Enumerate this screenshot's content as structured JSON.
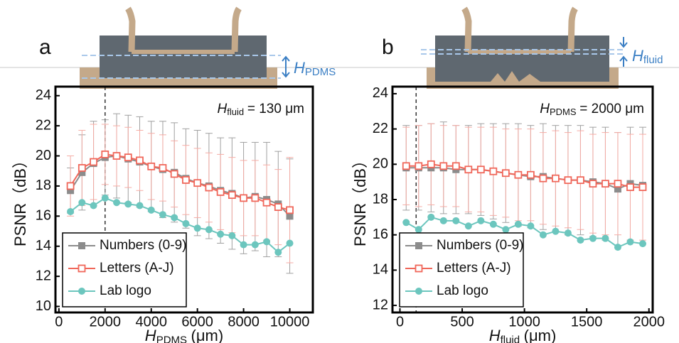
{
  "figure": {
    "panels": [
      "a",
      "b"
    ],
    "schematic_labels": [
      {
        "symbol": "H",
        "subscript": "PDMS"
      },
      {
        "symbol": "H",
        "subscript": "fluid"
      }
    ]
  },
  "chart_data": [
    {
      "type": "line",
      "panel": "a",
      "x_label": {
        "symbol": "H",
        "subscript": "PDMS",
        "text": "(μm)"
      },
      "y_label": "PSNR（dB）",
      "annotation": {
        "symbol": "H",
        "subscript": "fluid",
        "text": "= 130 μm"
      },
      "marker_line_x": 2000,
      "xlim": [
        -150,
        11000
      ],
      "xticks": [
        0,
        2000,
        4000,
        6000,
        8000,
        10000
      ],
      "ylim": [
        9.6,
        24.6
      ],
      "yticks": [
        10,
        12,
        14,
        16,
        18,
        20,
        22,
        24
      ],
      "legend": "lower left",
      "x": [
        500,
        1000,
        1500,
        2000,
        2500,
        3000,
        3500,
        4000,
        4500,
        5000,
        5500,
        6000,
        6500,
        7000,
        7500,
        8000,
        8500,
        9000,
        9500,
        10000
      ],
      "series": [
        {
          "name": "Numbers (0-9)",
          "color": "#8c8c8c",
          "error_color": "#a0a0a0",
          "marker": "square",
          "values": [
            17.7,
            18.9,
            19.5,
            19.9,
            20.0,
            19.8,
            19.6,
            19.3,
            19.1,
            18.9,
            18.5,
            18.2,
            18.0,
            17.7,
            17.5,
            17.2,
            17.3,
            17.1,
            16.8,
            16.0
          ],
          "errors": [
            1.5,
            2.5,
            2.8,
            2.5,
            2.8,
            2.9,
            3.0,
            3.0,
            3.2,
            3.3,
            3.3,
            3.5,
            3.5,
            3.5,
            3.7,
            3.7,
            3.6,
            3.8,
            3.5,
            3.8
          ]
        },
        {
          "name": "Letters (A-J)",
          "color": "#f0675a",
          "error_color": "#f5aca5",
          "marker": "square-open",
          "values": [
            18.0,
            19.2,
            19.6,
            20.1,
            20.0,
            19.9,
            19.7,
            19.3,
            19.2,
            18.8,
            18.4,
            18.2,
            17.9,
            17.6,
            17.4,
            17.2,
            17.2,
            16.9,
            16.6,
            16.4
          ],
          "errors": [
            2.0,
            2.5,
            2.5,
            2.0,
            2.0,
            2.0,
            2.0,
            2.2,
            2.2,
            2.2,
            2.3,
            2.3,
            2.3,
            2.5,
            2.5,
            2.5,
            2.5,
            2.5,
            2.5,
            3.5
          ]
        },
        {
          "name": "Lab logo",
          "color": "#6cc6be",
          "marker": "circle",
          "values": [
            16.3,
            16.9,
            16.7,
            17.2,
            16.9,
            16.8,
            16.7,
            16.4,
            16.1,
            15.9,
            15.5,
            15.2,
            15.1,
            14.8,
            14.7,
            14.1,
            14.1,
            14.3,
            13.6,
            14.2
          ]
        }
      ]
    },
    {
      "type": "line",
      "panel": "b",
      "x_label": {
        "symbol": "H",
        "subscript": "fluid",
        "text": "(μm)"
      },
      "y_label": "PSNR（dB）",
      "annotation": {
        "symbol": "H",
        "subscript": "PDMS",
        "text": "= 2000 μm"
      },
      "marker_line_x": 130,
      "xlim": [
        -60,
        2030
      ],
      "xticks": [
        0,
        500,
        1000,
        1500,
        2000
      ],
      "ylim": [
        11.6,
        24.4
      ],
      "yticks": [
        12,
        14,
        16,
        18,
        20,
        22,
        24
      ],
      "legend": "lower left",
      "x": [
        50,
        150,
        250,
        350,
        450,
        550,
        650,
        750,
        850,
        950,
        1050,
        1150,
        1250,
        1350,
        1450,
        1550,
        1650,
        1750,
        1850,
        1950
      ],
      "series": [
        {
          "name": "Numbers (0-9)",
          "color": "#8c8c8c",
          "error_color": "#a0a0a0",
          "marker": "square",
          "values": [
            19.8,
            19.8,
            19.8,
            19.8,
            19.7,
            19.7,
            19.7,
            19.6,
            19.5,
            19.4,
            19.3,
            19.3,
            19.2,
            19.1,
            19.1,
            19.0,
            18.9,
            18.6,
            18.9,
            18.8
          ],
          "errors": [
            2.4,
            2.4,
            2.5,
            2.6,
            2.5,
            2.5,
            2.6,
            2.7,
            2.8,
            2.9,
            2.9,
            3.0,
            3.0,
            3.1,
            3.1,
            3.1,
            3.2,
            3.2,
            3.2,
            3.3
          ]
        },
        {
          "name": "Letters (A-J)",
          "color": "#f0675a",
          "error_color": "#f5aca5",
          "marker": "square-open",
          "values": [
            19.9,
            19.9,
            20.0,
            19.9,
            19.9,
            19.7,
            19.7,
            19.6,
            19.5,
            19.4,
            19.4,
            19.2,
            19.2,
            19.1,
            19.1,
            18.9,
            18.9,
            18.9,
            18.7,
            18.7
          ],
          "errors": [
            2.2,
            2.3,
            2.3,
            2.3,
            2.3,
            2.4,
            2.4,
            2.5,
            2.5,
            2.6,
            2.6,
            2.6,
            2.7,
            2.7,
            2.8,
            2.8,
            2.9,
            2.9,
            3.0,
            3.0
          ]
        },
        {
          "name": "Lab logo",
          "color": "#6cc6be",
          "marker": "circle",
          "values": [
            16.7,
            16.3,
            17.0,
            16.8,
            16.8,
            16.5,
            16.8,
            16.6,
            16.3,
            16.6,
            16.5,
            16.0,
            16.2,
            16.1,
            15.7,
            15.8,
            15.8,
            15.3,
            15.6,
            15.5
          ]
        }
      ]
    }
  ]
}
